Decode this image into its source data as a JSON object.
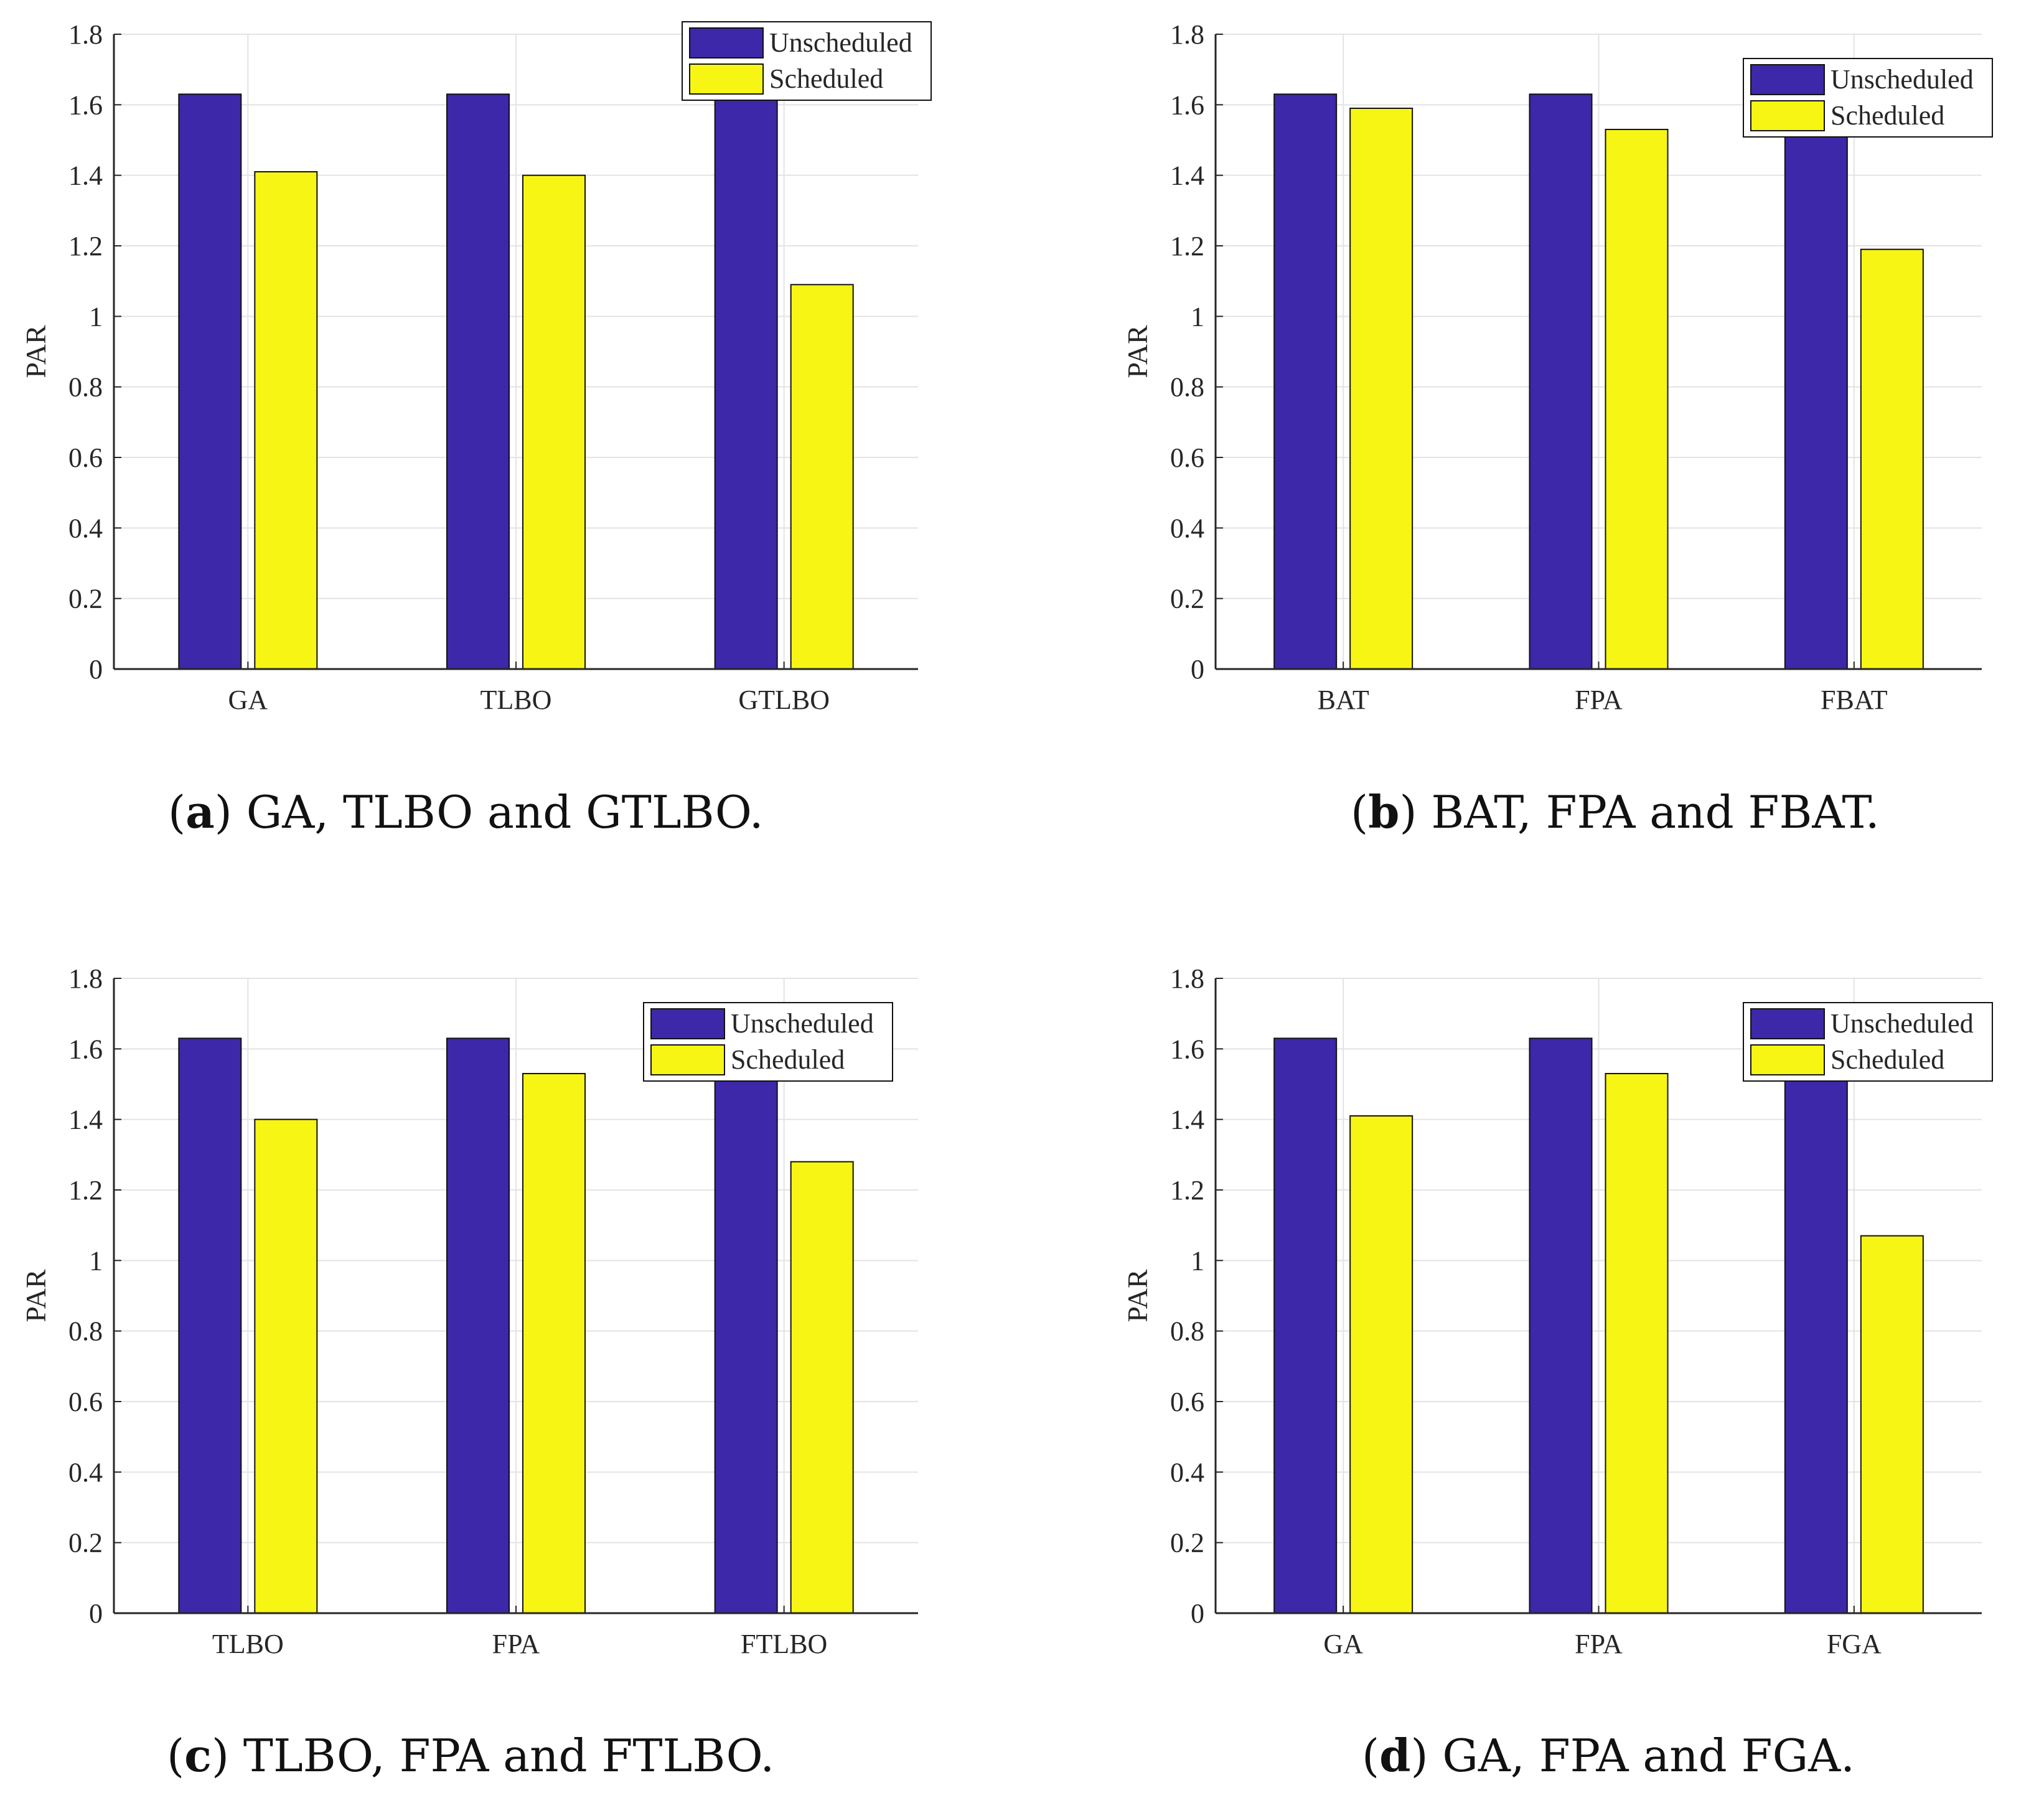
{
  "colors": {
    "unscheduled": "#3c28a8",
    "scheduled": "#f7f514",
    "axis": "#262626",
    "grid": "#e3e3e3"
  },
  "chart_data": [
    {
      "type": "bar",
      "caption_letter": "a",
      "caption_text": " GA, TLBO and GTLBO.",
      "categories": [
        "GA",
        "TLBO",
        "GTLBO"
      ],
      "series": [
        {
          "name": "Unscheduled",
          "values": [
            1.63,
            1.63,
            1.63
          ]
        },
        {
          "name": "Scheduled",
          "values": [
            1.41,
            1.4,
            1.09
          ]
        }
      ],
      "ylabel": "PAR",
      "ylim": [
        0,
        1.8
      ],
      "yticks": [
        "0",
        "0.2",
        "0.4",
        "0.6",
        "0.8",
        "1",
        "1.2",
        "1.4",
        "1.6",
        "1.8"
      ],
      "grid": true,
      "legend_position": "top-right"
    },
    {
      "type": "bar",
      "caption_letter": "b",
      "caption_text": " BAT, FPA and FBAT.",
      "categories": [
        "BAT",
        "FPA",
        "FBAT"
      ],
      "series": [
        {
          "name": "Unscheduled",
          "values": [
            1.63,
            1.63,
            1.63
          ]
        },
        {
          "name": "Scheduled",
          "values": [
            1.59,
            1.53,
            1.19
          ]
        }
      ],
      "ylabel": "PAR",
      "ylim": [
        0,
        1.8
      ],
      "yticks": [
        "0",
        "0.2",
        "0.4",
        "0.6",
        "0.8",
        "1",
        "1.2",
        "1.4",
        "1.6",
        "1.8"
      ],
      "grid": true,
      "legend_position": "top-right"
    },
    {
      "type": "bar",
      "caption_letter": "c",
      "caption_text": " TLBO, FPA and FTLBO.",
      "categories": [
        "TLBO",
        "FPA",
        "FTLBO"
      ],
      "series": [
        {
          "name": "Unscheduled",
          "values": [
            1.63,
            1.63,
            1.63
          ]
        },
        {
          "name": "Scheduled",
          "values": [
            1.4,
            1.53,
            1.28
          ]
        }
      ],
      "ylabel": "PAR",
      "ylim": [
        0,
        1.8
      ],
      "yticks": [
        "0",
        "0.2",
        "0.4",
        "0.6",
        "0.8",
        "1",
        "1.2",
        "1.4",
        "1.6",
        "1.8"
      ],
      "grid": true,
      "legend_position": "top-right"
    },
    {
      "type": "bar",
      "caption_letter": "d",
      "caption_text": " GA, FPA and FGA.",
      "categories": [
        "GA",
        "FPA",
        "FGA"
      ],
      "series": [
        {
          "name": "Unscheduled",
          "values": [
            1.63,
            1.63,
            1.63
          ]
        },
        {
          "name": "Scheduled",
          "values": [
            1.41,
            1.53,
            1.07
          ]
        }
      ],
      "ylabel": "PAR",
      "ylim": [
        0,
        1.8
      ],
      "yticks": [
        "0",
        "0.2",
        "0.4",
        "0.6",
        "0.8",
        "1",
        "1.2",
        "1.4",
        "1.6",
        "1.8"
      ],
      "grid": true,
      "legend_position": "top-right"
    }
  ]
}
